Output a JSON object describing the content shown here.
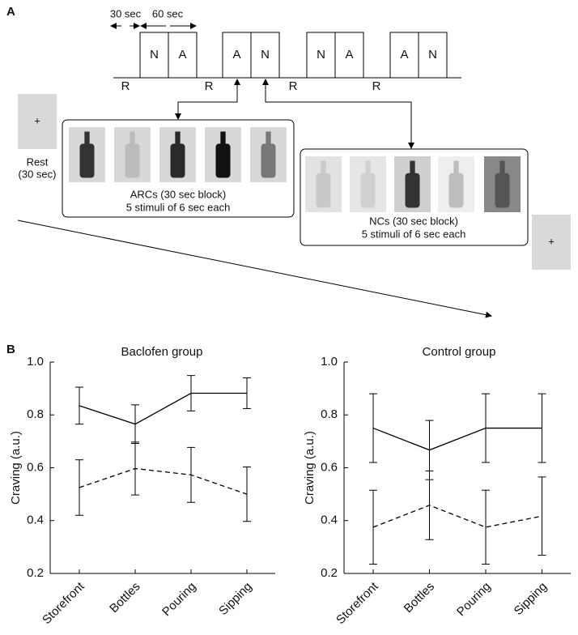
{
  "panel_a": {
    "label": "A",
    "timing": [
      "30 sec",
      "60 sec"
    ],
    "blocks": [
      [
        "N",
        "A"
      ],
      [
        "A",
        "N"
      ],
      [
        "N",
        "A"
      ],
      [
        "A",
        "N"
      ]
    ],
    "rests": [
      "R",
      "R",
      "R",
      "R"
    ],
    "fixation": "+",
    "rest_label": [
      "Rest",
      "(30 sec)"
    ],
    "arcs_caption": [
      "ARCs (30 sec block)",
      "5 stimuli of 6 sec each"
    ],
    "ncs_caption": [
      "NCs (30 sec block)",
      "5 stimuli of 6 sec each"
    ]
  },
  "panel_b_label": "B",
  "chart_data": [
    {
      "type": "line",
      "title": "Baclofen group",
      "y_label": "Craving (a.u.)",
      "categories": [
        "Storefront",
        "Bottles",
        "Pouring",
        "Sipping"
      ],
      "ylim": [
        0.2,
        1.0
      ],
      "yticks": [
        0.2,
        0.4,
        0.6,
        0.8,
        {
          "value": 1.0,
          "label": "1.0"
        }
      ],
      "series": [
        {
          "color": "#000000",
          "dash": "solid",
          "values": [
            0.835,
            0.765,
            0.882,
            0.882
          ],
          "errors": [
            0.07,
            0.073,
            0.067,
            0.058
          ]
        },
        {
          "color": "#000000",
          "dash": "dashed",
          "values": [
            0.525,
            0.597,
            0.573,
            0.5
          ],
          "errors": [
            0.105,
            0.1,
            0.104,
            0.103
          ]
        }
      ]
    },
    {
      "type": "line",
      "title": "Control group",
      "y_label": "Craving (a.u.)",
      "categories": [
        "Storefront",
        "Bottles",
        "Pouring",
        "Sipping"
      ],
      "ylim": [
        0.2,
        1.0
      ],
      "yticks": [
        0.2,
        0.4,
        0.6,
        0.8,
        {
          "value": 1.0,
          "label": "1.0"
        }
      ],
      "series": [
        {
          "color": "#000000",
          "dash": "solid",
          "values": [
            0.75,
            0.667,
            0.75,
            0.75
          ],
          "errors": [
            0.13,
            0.112,
            0.13,
            0.13
          ]
        },
        {
          "color": "#000000",
          "dash": "dashed",
          "values": [
            0.375,
            0.458,
            0.375,
            0.417
          ],
          "errors": [
            0.14,
            0.13,
            0.14,
            0.148
          ]
        }
      ]
    }
  ]
}
